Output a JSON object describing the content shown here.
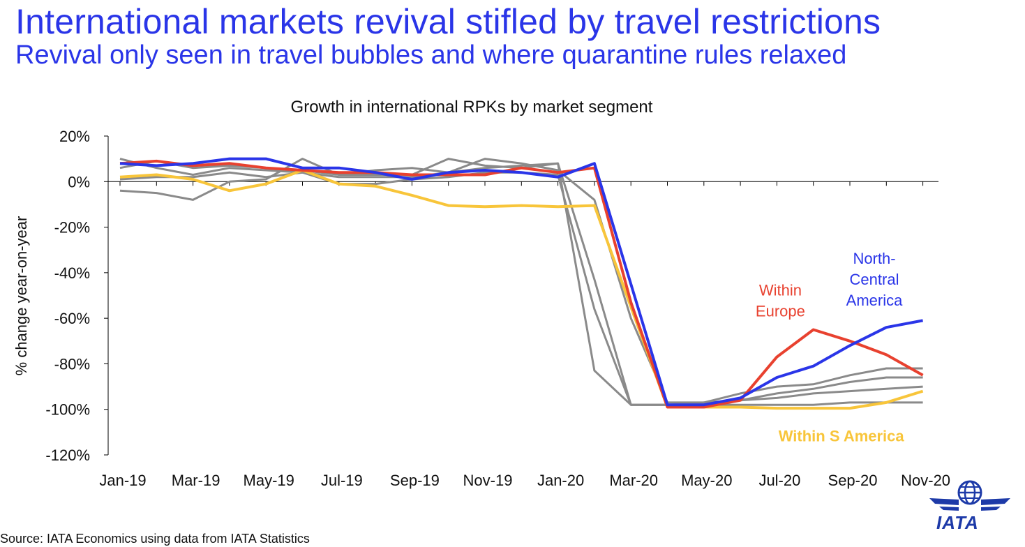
{
  "header": {
    "title": "International markets revival stifled by travel restrictions",
    "subtitle": "Revival only seen in travel bubbles and where quarantine rules relaxed"
  },
  "footer": {
    "source": "Source: IATA Economics using data from IATA Statistics"
  },
  "logo": {
    "text": "IATA",
    "icon": "globe-wings-icon"
  },
  "colors": {
    "blue": "#2a35e8",
    "red": "#e8412f",
    "yellow": "#f8c53a",
    "grey": "#8a8a8a"
  },
  "chart_data": {
    "type": "line",
    "title": "Growth in international RPKs by market segment",
    "xlabel": "",
    "ylabel": "% change year-on-year",
    "ylim": [
      -120,
      20
    ],
    "yticks": [
      "20%",
      "0%",
      "-20%",
      "-40%",
      "-60%",
      "-80%",
      "-100%",
      "-120%"
    ],
    "ytick_values": [
      20,
      0,
      -20,
      -40,
      -60,
      -80,
      -100,
      -120
    ],
    "x": [
      "Jan-19",
      "Feb-19",
      "Mar-19",
      "Apr-19",
      "May-19",
      "Jun-19",
      "Jul-19",
      "Aug-19",
      "Sep-19",
      "Oct-19",
      "Nov-19",
      "Dec-19",
      "Jan-20",
      "Feb-20",
      "Mar-20",
      "Apr-20",
      "May-20",
      "Jun-20",
      "Jul-20",
      "Aug-20",
      "Sep-20",
      "Oct-20",
      "Nov-20"
    ],
    "xticks": [
      "Jan-19",
      "Mar-19",
      "May-19",
      "Jul-19",
      "Sep-19",
      "Nov-19",
      "Jan-20",
      "Mar-20",
      "May-20",
      "Jul-20",
      "Sep-20",
      "Nov-20"
    ],
    "grid": false,
    "series": [
      {
        "key": "grey1",
        "name": "",
        "color": "#8a8a8a",
        "values": [
          10,
          6,
          3,
          6,
          5,
          4,
          2,
          2,
          2,
          4,
          10,
          8,
          5,
          -8,
          -60,
          -97,
          -97,
          -93,
          -90,
          -89,
          -85,
          -82,
          -82
        ]
      },
      {
        "key": "grey2",
        "name": "",
        "color": "#8a8a8a",
        "values": [
          6,
          9,
          6,
          7,
          6,
          5,
          3,
          3,
          3,
          10,
          7,
          6,
          8,
          -43,
          -98,
          -98,
          -98,
          -96,
          -93,
          -91,
          -88,
          -86,
          -86
        ]
      },
      {
        "key": "grey3",
        "name": "",
        "color": "#8a8a8a",
        "values": [
          -4,
          -5,
          -8,
          0,
          1,
          10,
          3,
          5,
          6,
          4,
          6,
          7,
          8,
          -83,
          -98,
          -98,
          -97,
          -96,
          -95,
          -93,
          -92,
          -91,
          -90
        ]
      },
      {
        "key": "grey4",
        "name": "",
        "color": "#8a8a8a",
        "values": [
          1,
          2,
          2,
          4,
          2,
          4,
          -1,
          -1,
          1,
          2,
          4,
          4,
          3,
          -56,
          -98,
          -98,
          -98,
          -98,
          -98,
          -98,
          -97,
          -97,
          -97
        ]
      },
      {
        "key": "yellow",
        "name": "Within S America",
        "color": "#f8c53a",
        "values": [
          2,
          3,
          1,
          -4,
          -1,
          5,
          -1,
          -2,
          -6,
          -10.5,
          -11,
          -10.5,
          -11,
          -10.5,
          -55,
          -99,
          -99,
          -99,
          -99.5,
          -99.5,
          -99.5,
          -97,
          -92
        ]
      },
      {
        "key": "red",
        "name": "Within Europe",
        "color": "#e8412f",
        "values": [
          8,
          9,
          7,
          8,
          6,
          5,
          4,
          4,
          3,
          3,
          3,
          6,
          4,
          6,
          -53,
          -99,
          -99,
          -96,
          -77,
          -65,
          -70,
          -76,
          -85
        ]
      },
      {
        "key": "blue",
        "name": "North-Central America",
        "color": "#2a35e8",
        "values": [
          8,
          7,
          8,
          10,
          10,
          6,
          6,
          4,
          1,
          4,
          5,
          4,
          2,
          8,
          -45,
          -98,
          -98,
          -95,
          -86,
          -81,
          -72,
          -64,
          -61
        ]
      }
    ],
    "annotations": [
      {
        "key": "europe",
        "lines": [
          "Within",
          "Europe"
        ],
        "color": "#e8412f",
        "x": "Jul-20",
        "y": -50
      },
      {
        "key": "na",
        "lines": [
          "North-",
          "Central",
          "America"
        ],
        "color": "#2a35e8",
        "x": "Sep-20",
        "y": -36
      },
      {
        "key": "sam",
        "lines": [
          "Within S America"
        ],
        "color": "#f8c53a",
        "x": "Aug-20",
        "y": -114,
        "bold": true
      }
    ]
  }
}
